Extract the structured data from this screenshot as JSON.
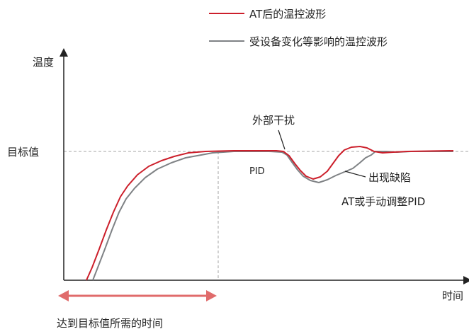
{
  "legend": {
    "items": [
      {
        "label": "AT后的温控波形",
        "color": "#cc1f2b"
      },
      {
        "label": "受设备变化等影响的温控波形",
        "color": "#7f8285"
      }
    ]
  },
  "axes": {
    "y_label": "温度",
    "x_label": "时间",
    "target_label": "目标值"
  },
  "annotations": {
    "disturbance": "外部干扰",
    "pid": "PID",
    "defect": "出现缺陷",
    "adjust": "AT或手动调整PID",
    "time_to_target": "达到目标值所需的时间"
  },
  "colors": {
    "axis": "#222222",
    "dashed": "#a6a6a6",
    "arrow": "#e06b6b",
    "red_curve": "#cc1f2b",
    "gray_curve": "#7f8285"
  }
}
